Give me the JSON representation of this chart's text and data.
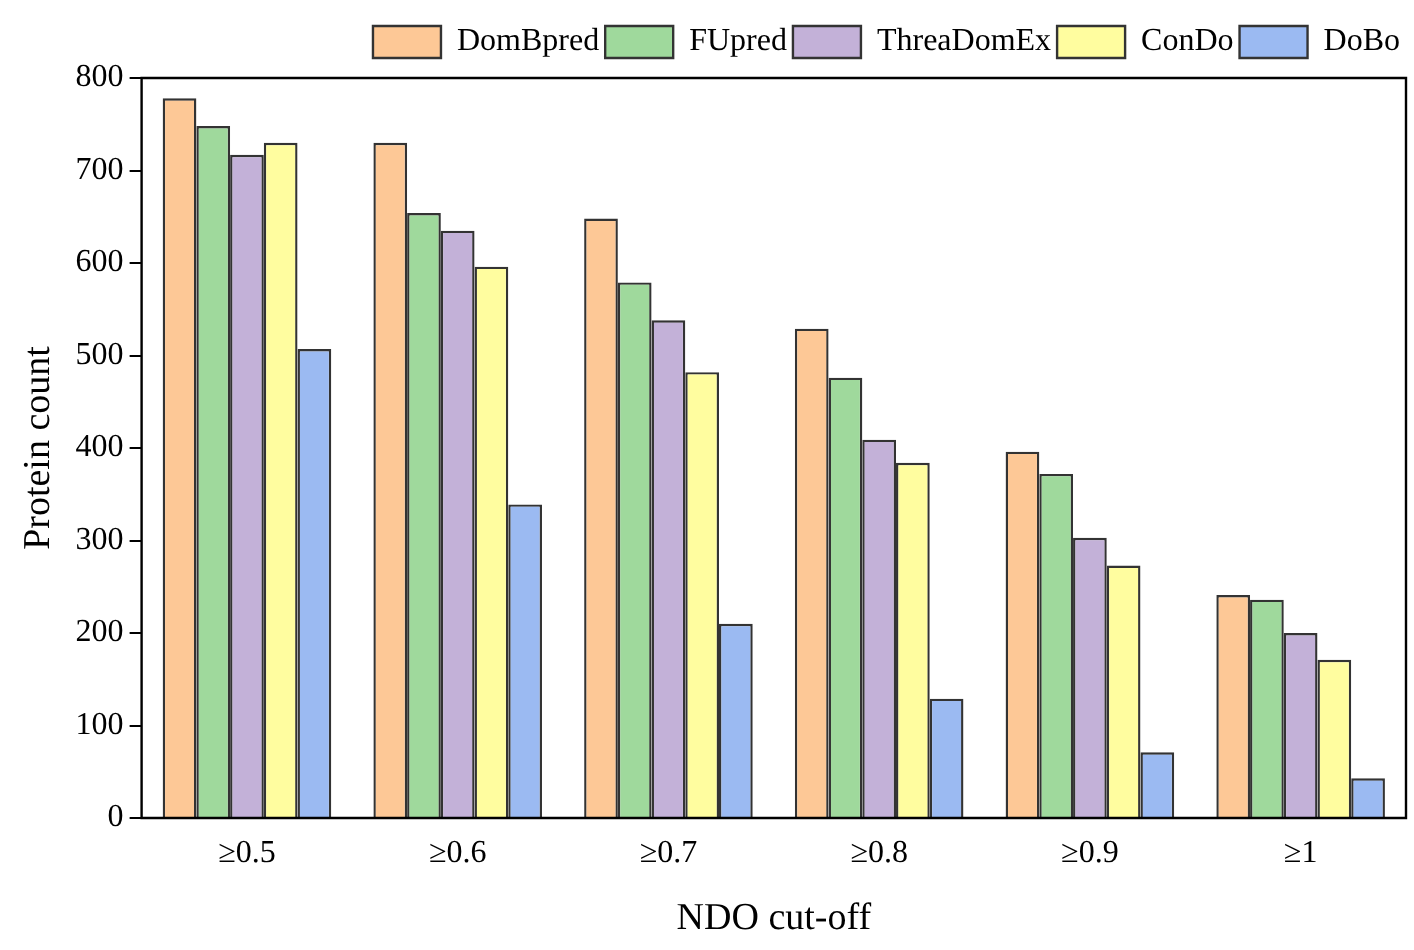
{
  "chart_data": {
    "type": "bar",
    "xlabel": "NDO cut-off",
    "ylabel": "Protein count",
    "categories": [
      "≥0.5",
      "≥0.6",
      "≥0.7",
      "≥0.8",
      "≥0.9",
      "≥1"
    ],
    "series": [
      {
        "name": "DomBpred",
        "color": "#fdc896",
        "values": [
          778,
          730,
          648,
          529,
          396,
          241
        ]
      },
      {
        "name": "FUpred",
        "color": "#9fd99c",
        "values": [
          748,
          654,
          579,
          476,
          372,
          236
        ]
      },
      {
        "name": "ThreaDomEx",
        "color": "#c3b1d8",
        "values": [
          717,
          635,
          538,
          409,
          303,
          200
        ]
      },
      {
        "name": "ConDo",
        "color": "#fffd9f",
        "values": [
          730,
          596,
          482,
          384,
          273,
          171
        ]
      },
      {
        "name": "DoBo",
        "color": "#9bbaf2",
        "values": [
          507,
          339,
          210,
          129,
          71,
          43
        ]
      }
    ],
    "ylim": [
      0,
      800
    ],
    "yticks": [
      0,
      100,
      200,
      300,
      400,
      500,
      600,
      700,
      800
    ],
    "grid": false,
    "legend": "top right"
  }
}
